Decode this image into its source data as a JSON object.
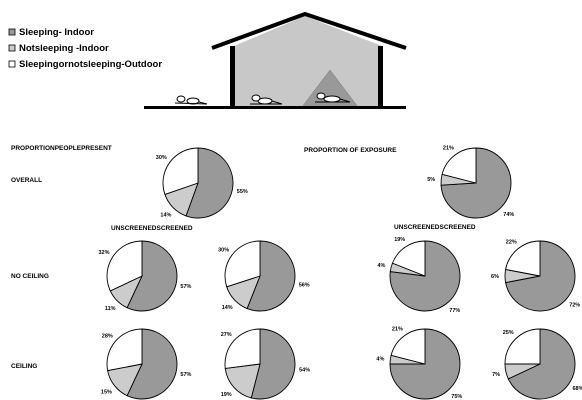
{
  "legend": [
    {
      "label": "Sleeping- Indoor",
      "color": "#999999"
    },
    {
      "label": "Notsleeping  -Indoor",
      "color": "#cccccc"
    },
    {
      "label": "Sleepingornotsleeping-Outdoor",
      "color": "#ffffff"
    }
  ],
  "headings": {
    "people": "PROPORTIONPEOPLEPRESENT",
    "exposure": "PROPORTION OF EXPOSURE",
    "screen_people": "UNSCREENEDSCREENED",
    "screen_exposure": "UNSCREENEDSCREENED"
  },
  "row_labels": {
    "overall": "OVERALL",
    "no_ceiling": "NO CEILING",
    "ceiling": "CEILING"
  },
  "chart_data": [
    {
      "type": "pie",
      "id": "people-overall",
      "categories": [
        "Sleeping- Indoor",
        "Notsleeping  -Indoor",
        "Sleepingornotsleeping-Outdoor"
      ],
      "values": [
        55,
        14,
        30
      ],
      "labels": [
        "55%",
        "14%",
        "30%"
      ]
    },
    {
      "type": "pie",
      "id": "exposure-overall",
      "categories": [
        "Sleeping- Indoor",
        "Notsleeping  -Indoor",
        "Sleepingornotsleeping-Outdoor"
      ],
      "values": [
        74,
        5,
        21
      ],
      "labels": [
        "74%",
        "5%",
        "21%"
      ]
    },
    {
      "type": "pie",
      "id": "people-noceiling-unscreened",
      "categories": [
        "Sleeping- Indoor",
        "Notsleeping  -Indoor",
        "Sleepingornotsleeping-Outdoor"
      ],
      "values": [
        57,
        11,
        32
      ],
      "labels": [
        "57%",
        "11%",
        "32%"
      ]
    },
    {
      "type": "pie",
      "id": "people-noceiling-screened",
      "categories": [
        "Sleeping- Indoor",
        "Notsleeping  -Indoor",
        "Sleepingornotsleeping-Outdoor"
      ],
      "values": [
        56,
        14,
        30
      ],
      "labels": [
        "56%",
        "14%",
        "30%"
      ]
    },
    {
      "type": "pie",
      "id": "exposure-noceiling-unscreened",
      "categories": [
        "Sleeping- Indoor",
        "Notsleeping  -Indoor",
        "Sleepingornotsleeping-Outdoor"
      ],
      "values": [
        77,
        4,
        19
      ],
      "labels": [
        "77%",
        "4%",
        "19%"
      ]
    },
    {
      "type": "pie",
      "id": "exposure-noceiling-screened",
      "categories": [
        "Sleeping- Indoor",
        "Notsleeping  -Indoor",
        "Sleepingornotsleeping-Outdoor"
      ],
      "values": [
        72,
        6,
        22
      ],
      "labels": [
        "72%",
        "6%",
        "22%"
      ]
    },
    {
      "type": "pie",
      "id": "people-ceiling-unscreened",
      "categories": [
        "Sleeping- Indoor",
        "Notsleeping  -Indoor",
        "Sleepingornotsleeping-Outdoor"
      ],
      "values": [
        57,
        15,
        28
      ],
      "labels": [
        "57%",
        "15%",
        "28%"
      ]
    },
    {
      "type": "pie",
      "id": "people-ceiling-screened",
      "categories": [
        "Sleeping- Indoor",
        "Notsleeping  -Indoor",
        "Sleepingornotsleeping-Outdoor"
      ],
      "values": [
        54,
        19,
        27
      ],
      "labels": [
        "54%",
        "19%",
        "27%"
      ]
    },
    {
      "type": "pie",
      "id": "exposure-ceiling-unscreened",
      "categories": [
        "Sleeping- Indoor",
        "Notsleeping  -Indoor",
        "Sleepingornotsleeping-Outdoor"
      ],
      "values": [
        75,
        4,
        21
      ],
      "labels": [
        "75%",
        "4%",
        "21%"
      ]
    },
    {
      "type": "pie",
      "id": "exposure-ceiling-screened",
      "categories": [
        "Sleeping- Indoor",
        "Notsleeping  -Indoor",
        "Sleepingornotsleeping-Outdoor"
      ],
      "values": [
        68,
        7,
        25
      ],
      "labels": [
        "68%",
        "7%",
        "25%"
      ]
    }
  ]
}
